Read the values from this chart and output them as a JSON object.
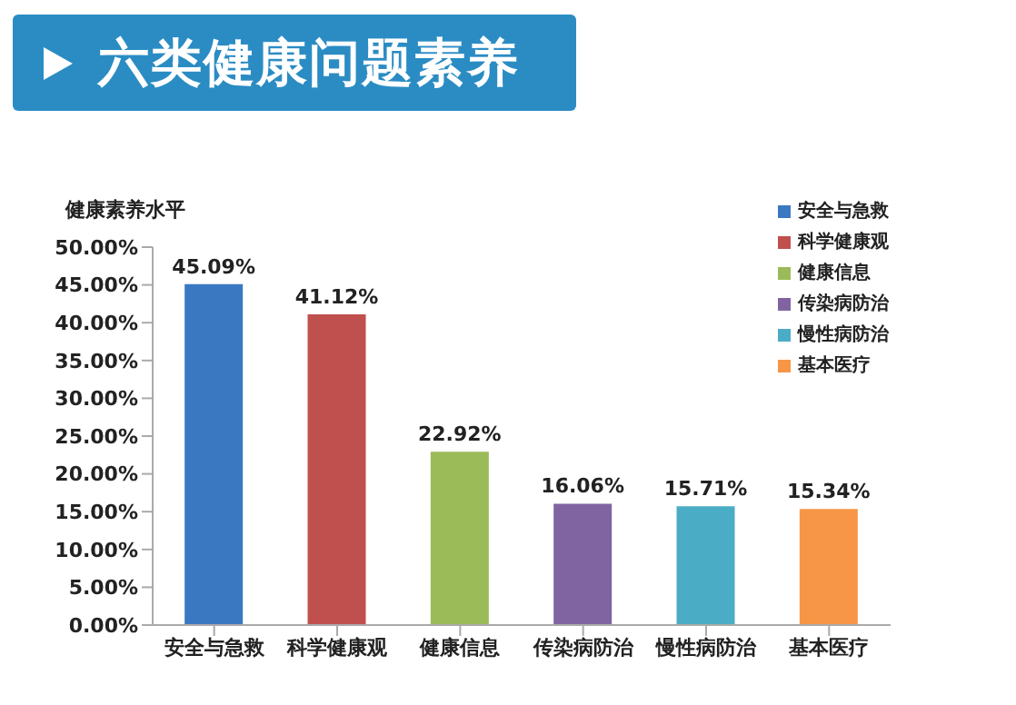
{
  "chart_data": {
    "type": "bar",
    "title": "六类健康问题素养",
    "ylabel": "健康素养水平",
    "stacked": true,
    "categories": [
      "安全与急救",
      "科学健康观",
      "健康信息",
      "传染病防治",
      "慢性病防治",
      "基本医疗"
    ],
    "series": [
      {
        "name": "安全与急救",
        "color": "#3a78c2",
        "values": [
          45.09,
          null,
          null,
          null,
          null,
          null
        ],
        "value_labels": [
          "45.09%",
          null,
          null,
          null,
          null,
          null
        ]
      },
      {
        "name": "科学健康观",
        "color": "#c0504d",
        "values": [
          null,
          41.12,
          null,
          null,
          null,
          null
        ],
        "value_labels": [
          null,
          "41.12%",
          null,
          null,
          null,
          null
        ]
      },
      {
        "name": "健康信息",
        "color": "#9bbb59",
        "values": [
          null,
          null,
          22.92,
          null,
          null,
          null
        ],
        "value_labels": [
          null,
          null,
          "22.92%",
          null,
          null,
          null
        ]
      },
      {
        "name": "传染病防治",
        "color": "#8064a2",
        "values": [
          null,
          null,
          null,
          16.06,
          null,
          null
        ],
        "value_labels": [
          null,
          null,
          null,
          "16.06%",
          null,
          null
        ]
      },
      {
        "name": "慢性病防治",
        "color": "#4bacc6",
        "values": [
          null,
          null,
          null,
          null,
          15.71,
          null
        ],
        "value_labels": [
          null,
          null,
          null,
          null,
          "15.71%",
          null
        ]
      },
      {
        "name": "基本医疗",
        "color": "#f79646",
        "values": [
          null,
          null,
          null,
          null,
          null,
          15.34
        ],
        "value_labels": [
          null,
          null,
          null,
          null,
          null,
          "15.34%"
        ]
      }
    ],
    "ylim": [
      0,
      50
    ],
    "yticks": [
      {
        "value": 0,
        "label": "0.00%"
      },
      {
        "value": 5,
        "label": "5.00%"
      },
      {
        "value": 10,
        "label": "10.00%"
      },
      {
        "value": 15,
        "label": "15.00%"
      },
      {
        "value": 20,
        "label": "20.00%"
      },
      {
        "value": 25,
        "label": "25.00%"
      },
      {
        "value": 30,
        "label": "30.00%"
      },
      {
        "value": 35,
        "label": "35.00%"
      },
      {
        "value": 40,
        "label": "40.00%"
      },
      {
        "value": 45,
        "label": "45.00%"
      },
      {
        "value": 50,
        "label": "50.00%"
      }
    ],
    "legend": "top right",
    "grid": false
  }
}
